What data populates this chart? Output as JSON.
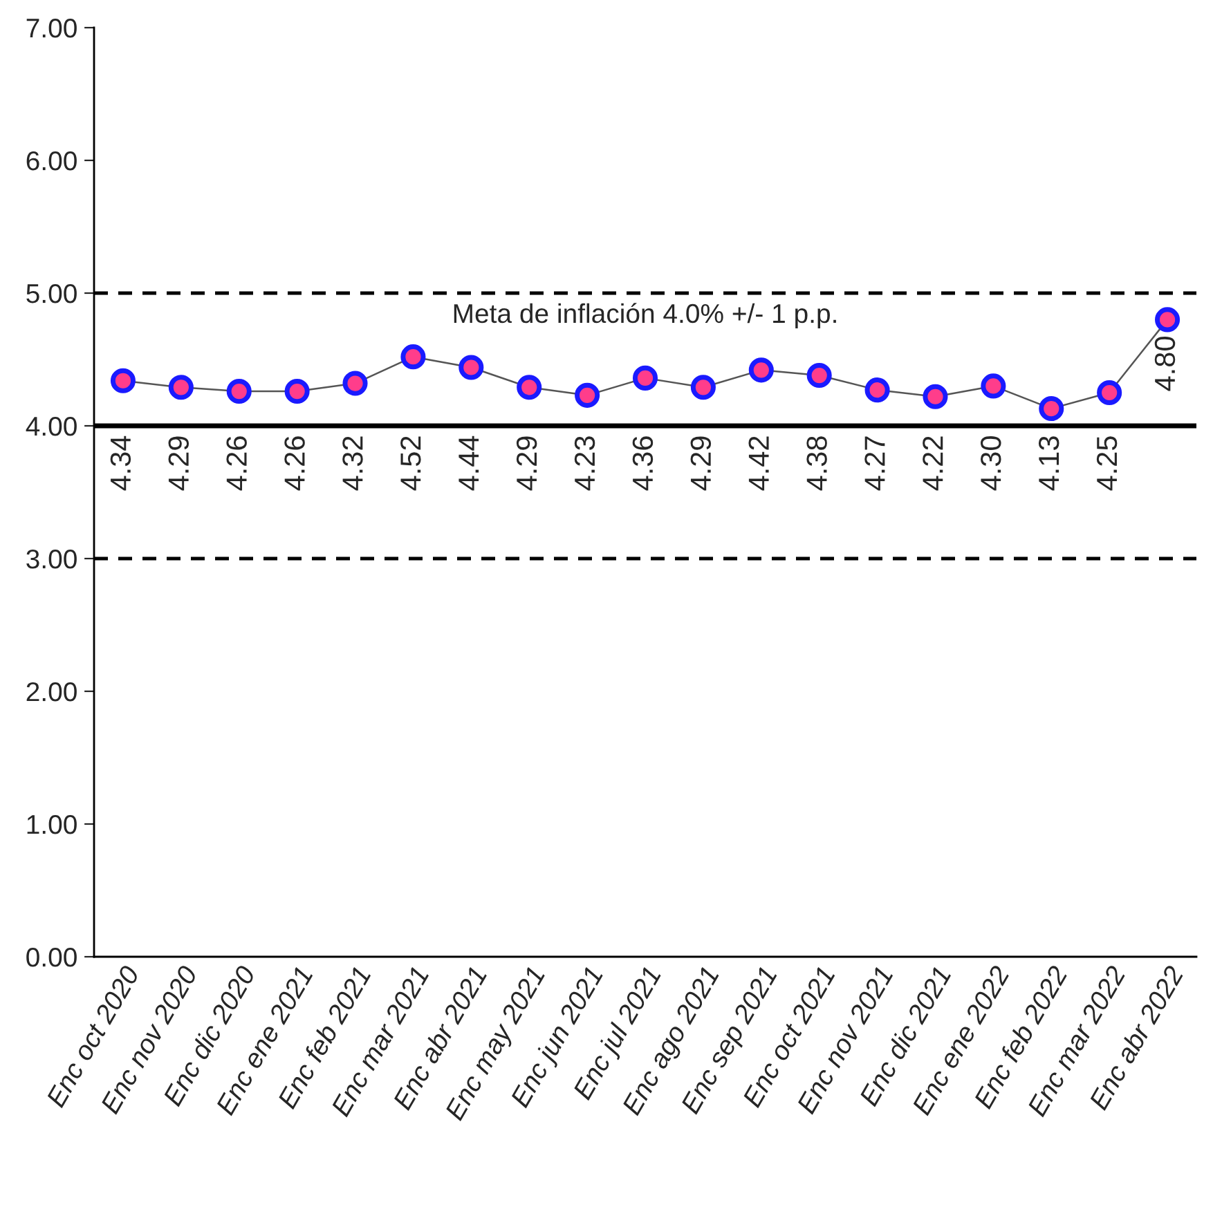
{
  "chart_data": {
    "type": "line",
    "categories": [
      "Enc oct 2020",
      "Enc nov 2020",
      "Enc dic 2020",
      "Enc ene 2021",
      "Enc feb 2021",
      "Enc mar 2021",
      "Enc abr 2021",
      "Enc may 2021",
      "Enc jun 2021",
      "Enc jul 2021",
      "Enc ago 2021",
      "Enc sep 2021",
      "Enc oct 2021",
      "Enc nov 2021",
      "Enc dic 2021",
      "Enc ene 2022",
      "Enc feb 2022",
      "Enc mar 2022",
      "Enc abr 2022"
    ],
    "series": [
      {
        "color": "#ff3d8b",
        "values": [
          4.34,
          4.29,
          4.26,
          4.26,
          4.32,
          4.52,
          4.44,
          4.29,
          4.23,
          4.36,
          4.29,
          4.42,
          4.38,
          4.27,
          4.22,
          4.3,
          4.13,
          4.25,
          4.8
        ],
        "value_labels": [
          "4.34",
          "4.29",
          "4.26",
          "4.26",
          "4.32",
          "4.52",
          "4.44",
          "4.29",
          "4.23",
          "4.36",
          "4.29",
          "4.42",
          "4.38",
          "4.27",
          "4.22",
          "4.30",
          "4.13",
          "4.25",
          "4.80"
        ]
      }
    ],
    "ylim": [
      0,
      7
    ],
    "yticks": [
      {
        "value": 0,
        "label": "0.00"
      },
      {
        "value": 1,
        "label": "1.00"
      },
      {
        "value": 2,
        "label": "2.00"
      },
      {
        "value": 3,
        "label": "3.00"
      },
      {
        "value": 4,
        "label": "4.00"
      },
      {
        "value": 5,
        "label": "5.00"
      },
      {
        "value": 6,
        "label": "6.00"
      },
      {
        "value": 7,
        "label": "7.00"
      }
    ],
    "ref_lines": [
      {
        "axis": "y",
        "value": 5,
        "line_style": "dashed",
        "color": "#000000"
      },
      {
        "axis": "y",
        "value": 4,
        "line_style": "solid",
        "color": "#000000"
      },
      {
        "axis": "y",
        "value": 3,
        "line_style": "dashed",
        "color": "#000000"
      }
    ],
    "annotations": [
      "Meta de inflación 4.0% +/- 1 p.p."
    ],
    "marker": "circle",
    "grid": false,
    "legend": false
  }
}
